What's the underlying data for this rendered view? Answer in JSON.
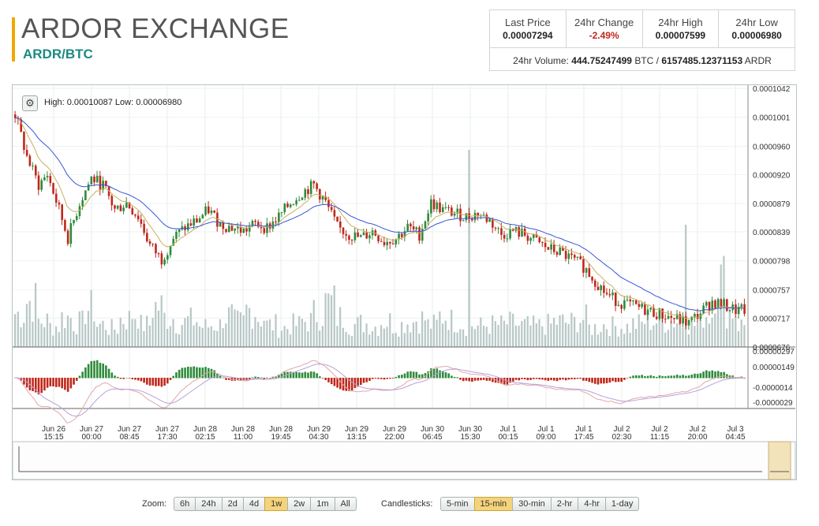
{
  "header": {
    "title": "ARDOR EXCHANGE",
    "pair": "ARDR/BTC"
  },
  "stats": {
    "last_price_label": "Last Price",
    "last_price": "0.00007294",
    "change_label": "24hr Change",
    "change": "-2.49%",
    "high_label": "24hr High",
    "high": "0.00007599",
    "low_label": "24hr Low",
    "low": "0.00006980",
    "volume_label": "24hr Volume:",
    "volume_btc": "444.75247499",
    "volume_btc_unit": "BTC /",
    "volume_ardr": "6157485.12371153",
    "volume_ardr_unit": "ARDR"
  },
  "chart_info": {
    "high_text": "High: 0.00010087",
    "low_text": "Low: 0.00006980",
    "settings_icon": "gear-icon"
  },
  "chart_data": {
    "type": "candlestick",
    "price_ticks": [
      "0.0001042",
      "0.0001001",
      "0.0000960",
      "0.0000920",
      "0.0000879",
      "0.0000839",
      "0.0000798",
      "0.0000757",
      "0.0000717",
      "0.0000676"
    ],
    "price_range": [
      6.76e-05,
      0.0001042
    ],
    "macd_ticks": [
      "0.00000297",
      "0.00000149",
      "-0.0000014",
      "-0.0000029"
    ],
    "time_ticks": [
      {
        "d": "Jun 26",
        "t": "15:15"
      },
      {
        "d": "Jun 27",
        "t": "00:00"
      },
      {
        "d": "Jun 27",
        "t": "08:45"
      },
      {
        "d": "Jun 27",
        "t": "17:30"
      },
      {
        "d": "Jun 28",
        "t": "02:15"
      },
      {
        "d": "Jun 28",
        "t": "11:00"
      },
      {
        "d": "Jun 28",
        "t": "19:45"
      },
      {
        "d": "Jun 29",
        "t": "04:30"
      },
      {
        "d": "Jun 29",
        "t": "13:15"
      },
      {
        "d": "Jun 29",
        "t": "22:00"
      },
      {
        "d": "Jun 30",
        "t": "06:45"
      },
      {
        "d": "Jun 30",
        "t": "15:30"
      },
      {
        "d": "Jul 1",
        "t": "00:15"
      },
      {
        "d": "Jul 1",
        "t": "09:00"
      },
      {
        "d": "Jul 1",
        "t": "17:45"
      },
      {
        "d": "Jul 2",
        "t": "02:30"
      },
      {
        "d": "Jul 2",
        "t": "11:15"
      },
      {
        "d": "Jul 2",
        "t": "20:00"
      },
      {
        "d": "Jul 3",
        "t": "04:45"
      }
    ],
    "price_path": [
      [
        0,
        0.0001005
      ],
      [
        4,
        9.45e-05
      ],
      [
        8,
        9.05e-05
      ],
      [
        11,
        9.2e-05
      ],
      [
        15,
        8.7e-05
      ],
      [
        18,
        8.3e-05
      ],
      [
        22,
        8.8e-05
      ],
      [
        26,
        9.15e-05
      ],
      [
        30,
        9.05e-05
      ],
      [
        34,
        8.7e-05
      ],
      [
        38,
        8.8e-05
      ],
      [
        42,
        8.6e-05
      ],
      [
        46,
        8.2e-05
      ],
      [
        50,
        8e-05
      ],
      [
        54,
        8.3e-05
      ],
      [
        58,
        8.45e-05
      ],
      [
        62,
        8.55e-05
      ],
      [
        66,
        8.7e-05
      ],
      [
        70,
        8.5e-05
      ],
      [
        74,
        8.45e-05
      ],
      [
        78,
        8.4e-05
      ],
      [
        82,
        8.5e-05
      ],
      [
        86,
        8.45e-05
      ],
      [
        90,
        8.6e-05
      ],
      [
        94,
        8.8e-05
      ],
      [
        98,
        8.95e-05
      ],
      [
        102,
        9.05e-05
      ],
      [
        106,
        8.8e-05
      ],
      [
        110,
        8.45e-05
      ],
      [
        114,
        8.35e-05
      ],
      [
        118,
        8.3e-05
      ],
      [
        122,
        8.4e-05
      ],
      [
        126,
        8.25e-05
      ],
      [
        130,
        8.3e-05
      ],
      [
        134,
        8.45e-05
      ],
      [
        138,
        8.35e-05
      ],
      [
        142,
        8.8e-05
      ],
      [
        146,
        8.7e-05
      ],
      [
        150,
        8.65e-05
      ],
      [
        154,
        8.6e-05
      ],
      [
        158,
        8.65e-05
      ],
      [
        162,
        8.55e-05
      ],
      [
        166,
        8.35e-05
      ],
      [
        170,
        8.4e-05
      ],
      [
        174,
        8.35e-05
      ],
      [
        178,
        8.25e-05
      ],
      [
        182,
        8.15e-05
      ],
      [
        186,
        8.1e-05
      ],
      [
        190,
        8e-05
      ],
      [
        194,
        7.9e-05
      ],
      [
        198,
        7.7e-05
      ],
      [
        202,
        7.5e-05
      ],
      [
        206,
        7.4e-05
      ],
      [
        210,
        7.35e-05
      ],
      [
        214,
        7.3e-05
      ],
      [
        218,
        7.25e-05
      ],
      [
        222,
        7.2e-05
      ],
      [
        226,
        7.15e-05
      ],
      [
        230,
        7.1e-05
      ],
      [
        234,
        7.25e-05
      ],
      [
        238,
        7.4e-05
      ],
      [
        242,
        7.35e-05
      ],
      [
        246,
        7.28e-05
      ]
    ],
    "volume_profile": [
      0.45,
      0.62,
      0.35,
      0.28,
      0.4,
      0.33,
      0.52,
      0.3,
      0.25,
      0.38,
      0.45,
      0.3,
      0.55,
      0.4,
      0.33,
      0.36,
      0.28,
      0.3,
      0.42,
      0.34,
      0.5,
      0.4,
      0.3,
      0.26,
      0.3,
      0.35,
      0.45,
      0.6,
      0.4,
      0.3,
      0.32,
      0.28,
      0.35,
      0.3,
      0.34,
      0.38,
      0.3,
      0.42,
      0.36,
      0.3,
      0.28,
      0.3,
      0.3,
      0.32,
      0.29,
      0.28,
      0.3,
      0.34,
      0.33,
      0.38,
      0.26,
      0.3,
      0.28,
      0.27,
      0.31,
      0.35,
      0.35,
      0.36,
      0.32,
      0.3,
      0.45,
      0.9,
      0.5,
      0.3
    ]
  },
  "zoom": {
    "label": "Zoom:",
    "options": [
      "6h",
      "24h",
      "2d",
      "4d",
      "1w",
      "2w",
      "1m",
      "All"
    ],
    "active": "1w"
  },
  "candlesticks": {
    "label": "Candlesticks:",
    "options": [
      "5-min",
      "15-min",
      "30-min",
      "2-hr",
      "4-hr",
      "1-day"
    ],
    "active": "15-min"
  },
  "colors": {
    "up": "#2e8b3a",
    "down": "#c0271a",
    "volume": "#b8c8c6",
    "ema_slow": "#3a56d6",
    "ema_fast": "#c8b060",
    "accent": "#f0a800",
    "pair": "#1b8a82"
  }
}
